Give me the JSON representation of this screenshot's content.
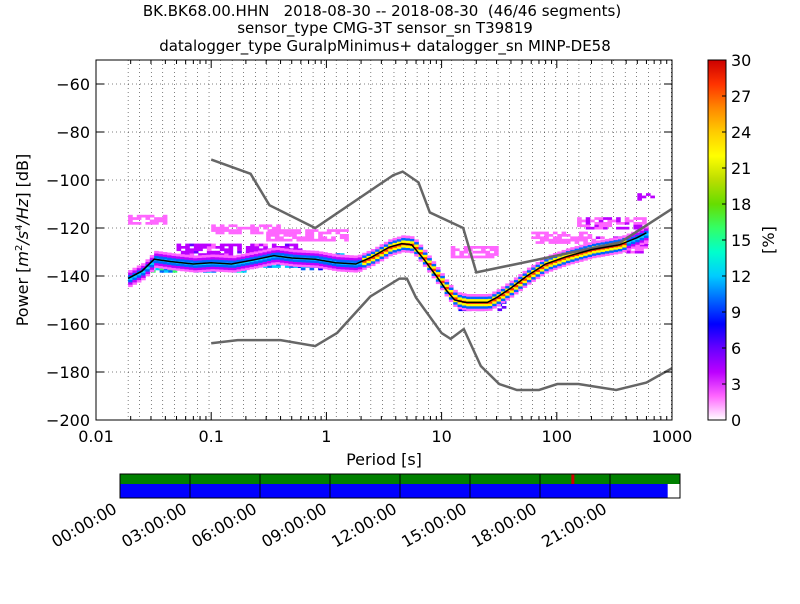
{
  "title_lines": [
    "BK.BK68.00.HHN   2018-08-30 -- 2018-08-30  (46/46 segments)",
    "sensor_type CMG-3T sensor_sn T39819",
    "datalogger_type GuralpMinimus+ datalogger_sn MINP-DE58"
  ],
  "chart_data": {
    "type": "heatmap",
    "xlabel": "Period [s]",
    "ylabel_parts": [
      "Power [",
      "m",
      "2",
      "/",
      "s",
      "4",
      "/",
      "Hz",
      "] [dB]"
    ],
    "x_scale": "log",
    "xlim": [
      0.01,
      1000
    ],
    "ylim": [
      -200,
      -50
    ],
    "x_ticks": [
      0.01,
      0.1,
      1,
      10,
      100,
      1000
    ],
    "x_tick_labels": [
      "0.01",
      "0.1",
      "1",
      "10",
      "100",
      "1000"
    ],
    "y_ticks": [
      -200,
      -180,
      -160,
      -140,
      -120,
      -100,
      -80,
      -60
    ],
    "y_tick_labels": [
      "−200",
      "−180",
      "−160",
      "−140",
      "−120",
      "−100",
      "−80",
      "−60"
    ],
    "grid": "dotted vertical lines at period bins, dotted horizontal lines at major y ticks",
    "colorbar": {
      "label": "[%]",
      "range": [
        0,
        30
      ],
      "ticks": [
        0,
        3,
        6,
        9,
        12,
        15,
        18,
        21,
        24,
        27,
        30
      ],
      "colormap": [
        "#ffffff",
        "#ff66ff",
        "#bb00ff",
        "#6600ff",
        "#0000ff",
        "#0066ff",
        "#00ccff",
        "#00ffcc",
        "#33ff66",
        "#66dd00",
        "#bbdd00",
        "#ffff00",
        "#ffcc00",
        "#ff8800",
        "#ff3300",
        "#cc0000"
      ]
    },
    "noise_model_color": "#666666",
    "nhnm": {
      "name": "NHNM",
      "x": [
        0.1,
        0.22,
        0.32,
        0.8,
        3.8,
        4.6,
        6.3,
        7.9,
        15.4,
        20,
        354.8,
        1000
      ],
      "y": [
        -91.5,
        -97.4,
        -110.5,
        -120,
        -98,
        -96.5,
        -101,
        -113.5,
        -120,
        -138.5,
        -126,
        -112
      ]
    },
    "nlnm": {
      "name": "NLNM",
      "x": [
        0.1,
        0.17,
        0.4,
        0.8,
        1.24,
        2.4,
        4.3,
        5,
        6,
        10,
        12,
        15.6,
        21.9,
        31.6,
        45,
        70,
        101,
        154,
        328,
        600,
        1000
      ],
      "y": [
        -168,
        -166.7,
        -166.7,
        -169.2,
        -163.7,
        -148.6,
        -141.1,
        -141.1,
        -149,
        -163.8,
        -166.2,
        -162.1,
        -177.5,
        -185,
        -187.5,
        -187.5,
        -185,
        -185,
        -187.5,
        -184.4,
        -178.4
      ]
    },
    "mode_curve": {
      "name": "mode",
      "color": "#000000",
      "x": [
        0.019,
        0.025,
        0.032,
        0.045,
        0.07,
        0.1,
        0.15,
        0.25,
        0.35,
        0.5,
        0.8,
        1.2,
        1.8,
        2.5,
        3.5,
        4.5,
        5.5,
        7,
        9,
        11,
        13,
        16,
        20,
        25,
        30,
        40,
        55,
        80,
        120,
        200,
        350,
        500,
        600
      ],
      "y": [
        -141,
        -138,
        -133,
        -134,
        -135,
        -134.5,
        -135,
        -133,
        -131.5,
        -132.5,
        -133,
        -134.5,
        -135,
        -132,
        -128,
        -126.5,
        -127,
        -133,
        -140,
        -146,
        -150,
        -151,
        -151,
        -151,
        -149,
        -145,
        -140,
        -135,
        -132,
        -129,
        -127,
        -124,
        -122
      ]
    },
    "clusters": [
      {
        "x": [
          0.03,
          0.2
        ],
        "y": [
          -138,
          -132
        ],
        "pct": 13
      },
      {
        "x": [
          0.2,
          0.6
        ],
        "y": [
          -136,
          -130
        ],
        "pct": 11
      },
      {
        "x": [
          0.6,
          1.4
        ],
        "y": [
          -137,
          -131
        ],
        "pct": 10
      },
      {
        "x": [
          0.05,
          0.6
        ],
        "y": [
          -131,
          -127
        ],
        "pct": 4
      },
      {
        "x": [
          0.3,
          1.5
        ],
        "y": [
          -125,
          -121
        ],
        "pct": 2
      },
      {
        "x": [
          0.019,
          0.04
        ],
        "y": [
          -118,
          -115
        ],
        "pct": 2
      },
      {
        "x": [
          0.1,
          0.4
        ],
        "y": [
          -122,
          -119
        ],
        "pct": 2
      },
      {
        "x": [
          12,
          30
        ],
        "y": [
          -132,
          -128
        ],
        "pct": 2
      },
      {
        "x": [
          60,
          200
        ],
        "y": [
          -126,
          -122
        ],
        "pct": 2
      },
      {
        "x": [
          150,
          600
        ],
        "y": [
          -120,
          -116
        ],
        "pct": 3
      },
      {
        "x": [
          200,
          600
        ],
        "y": [
          -130,
          -124
        ],
        "pct": 3
      },
      {
        "x": [
          500,
          700
        ],
        "y": [
          -108,
          -106
        ],
        "pct": 4
      },
      {
        "x": [
          14,
          35
        ],
        "y": [
          -154,
          -150
        ],
        "pct": 7
      }
    ]
  },
  "timeline": {
    "tick_labels": [
      "00:00:00",
      "03:00:00",
      "06:00:00",
      "09:00:00",
      "12:00:00",
      "15:00:00",
      "18:00:00",
      "21:00:00"
    ],
    "coverage_color": "#008000",
    "gap_marker_color": "#cc0000",
    "gap_marker_fraction": 0.806,
    "data_color": "#0000ff",
    "data_end_fraction": 0.978
  }
}
